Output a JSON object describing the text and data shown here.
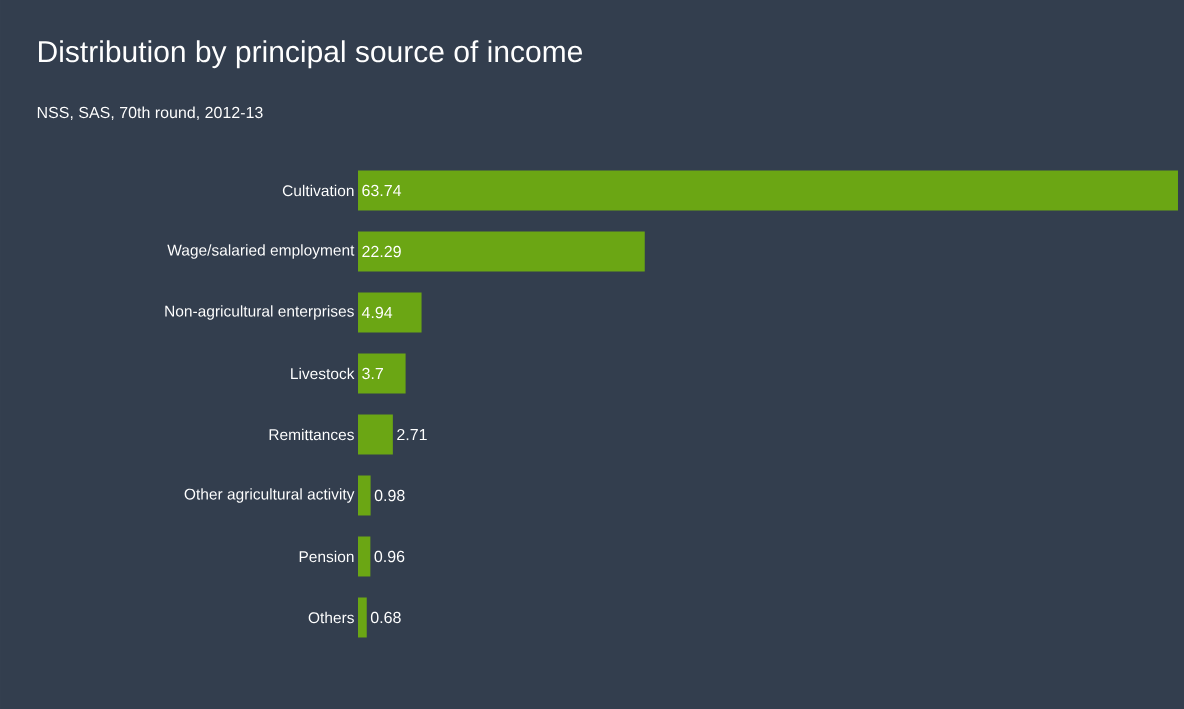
{
  "chart_data": {
    "type": "bar",
    "orientation": "horizontal",
    "title": "Distribution by principal source of income",
    "subtitle": "NSS, SAS, 70th round, 2012-13",
    "categories": [
      "Cultivation",
      "Wage/salaried employment",
      "Non-agricultural enterprises",
      "Livestock",
      "Remittances",
      "Other agricultural activity",
      "Pension",
      "Others"
    ],
    "values": [
      63.74,
      22.29,
      4.94,
      3.7,
      2.71,
      0.98,
      0.96,
      0.68
    ],
    "color": "#6ba614",
    "data_labels": true
  }
}
